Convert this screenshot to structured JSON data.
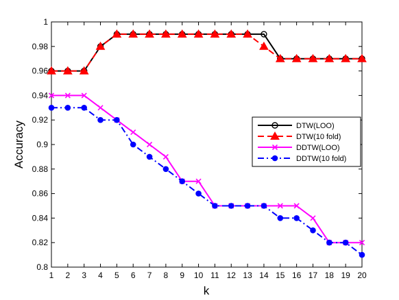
{
  "chart_data": {
    "type": "line",
    "title": "",
    "xlabel": "k",
    "ylabel": "Accuracy",
    "xlim": [
      1,
      20
    ],
    "ylim": [
      0.8,
      1.0
    ],
    "x": [
      1,
      2,
      3,
      4,
      5,
      6,
      7,
      8,
      9,
      10,
      11,
      12,
      13,
      14,
      15,
      16,
      17,
      18,
      19,
      20
    ],
    "x_ticks": [
      "1",
      "2",
      "3",
      "4",
      "5",
      "6",
      "7",
      "8",
      "9",
      "10",
      "11",
      "12",
      "13",
      "14",
      "15",
      "16",
      "17",
      "18",
      "19",
      "20"
    ],
    "y_ticks": [
      "0.8",
      "0.82",
      "0.84",
      "0.86",
      "0.88",
      "0.9",
      "0.92",
      "0.94",
      "0.96",
      "0.98",
      "1"
    ],
    "grid": false,
    "legend_position": "right",
    "series": [
      {
        "name": "DTW(LOO)",
        "color": "#000000",
        "line": "solid",
        "marker": "circle-open",
        "values": [
          0.96,
          0.96,
          0.96,
          0.98,
          0.99,
          0.99,
          0.99,
          0.99,
          0.99,
          0.99,
          0.99,
          0.99,
          0.99,
          0.99,
          0.97,
          0.97,
          0.97,
          0.97,
          0.97,
          0.97
        ]
      },
      {
        "name": "DTW(10 fold)",
        "color": "#ff0000",
        "line": "dashed",
        "marker": "triangle-filled",
        "values": [
          0.96,
          0.96,
          0.96,
          0.98,
          0.99,
          0.99,
          0.99,
          0.99,
          0.99,
          0.99,
          0.99,
          0.99,
          0.99,
          0.98,
          0.97,
          0.97,
          0.97,
          0.97,
          0.97,
          0.97
        ]
      },
      {
        "name": "DDTW(LOO)",
        "color": "#ff00ff",
        "line": "solid",
        "marker": "x",
        "values": [
          0.94,
          0.94,
          0.94,
          0.93,
          0.92,
          0.91,
          0.9,
          0.89,
          0.87,
          0.87,
          0.85,
          0.85,
          0.85,
          0.85,
          0.85,
          0.85,
          0.84,
          0.82,
          0.82,
          0.82
        ]
      },
      {
        "name": "DDTW(10 fold)",
        "color": "#0000ff",
        "line": "dashdot",
        "marker": "circle-filled",
        "values": [
          0.93,
          0.93,
          0.93,
          0.92,
          0.92,
          0.9,
          0.89,
          0.88,
          0.87,
          0.86,
          0.85,
          0.85,
          0.85,
          0.85,
          0.84,
          0.84,
          0.83,
          0.82,
          0.82,
          0.81
        ]
      }
    ]
  }
}
